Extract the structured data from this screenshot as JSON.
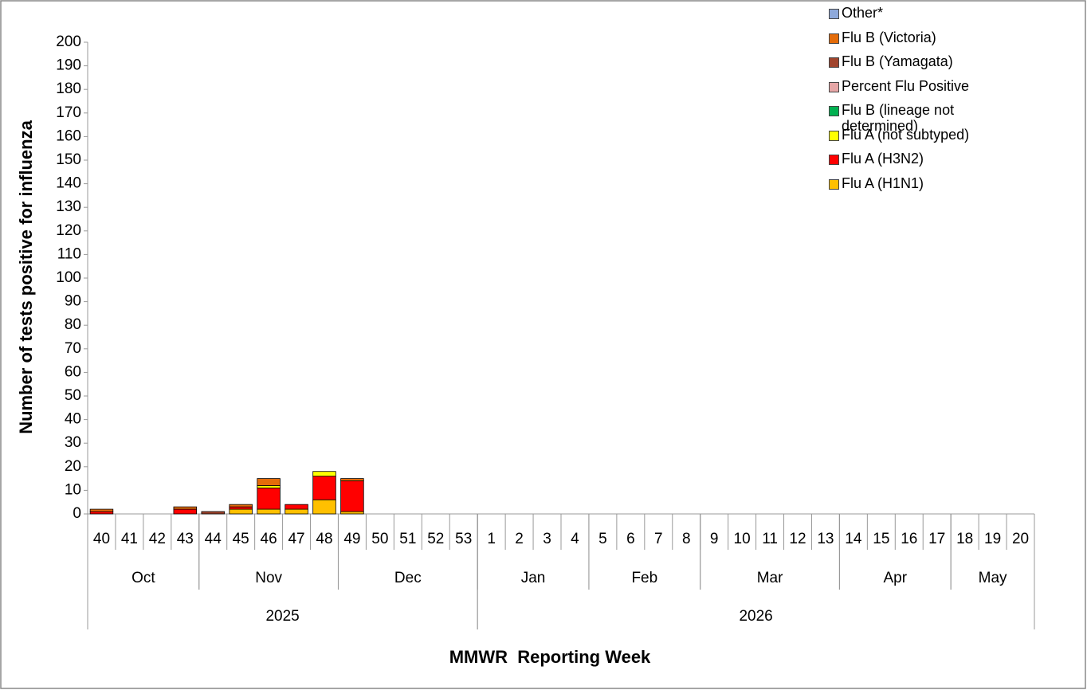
{
  "chart_data": {
    "type": "stacked_bar",
    "y_label": "Number of tests positive for influenza",
    "x_label": "MMWR  Reporting Week",
    "categories": [
      "40",
      "41",
      "42",
      "43",
      "44",
      "45",
      "46",
      "47",
      "48",
      "49",
      "50",
      "51",
      "52",
      "53",
      "1",
      "2",
      "3",
      "4",
      "5",
      "6",
      "7",
      "8",
      "9",
      "10",
      "11",
      "12",
      "13",
      "14",
      "15",
      "16",
      "17",
      "18",
      "19",
      "20"
    ],
    "month_groups": [
      {
        "label": "Oct",
        "span": 4
      },
      {
        "label": "Nov",
        "span": 5
      },
      {
        "label": "Dec",
        "span": 5
      },
      {
        "label": "Jan",
        "span": 4
      },
      {
        "label": "Feb",
        "span": 4
      },
      {
        "label": "Mar",
        "span": 5
      },
      {
        "label": "Apr",
        "span": 4
      },
      {
        "label": "May",
        "span": 3
      }
    ],
    "year_groups": [
      {
        "label": "2025",
        "span": 14
      },
      {
        "label": "2026",
        "span": 20
      }
    ],
    "series": [
      {
        "name": "Flu A (H1N1)",
        "color": "#FFC000",
        "values": [
          0,
          0,
          0,
          0,
          0,
          2,
          2,
          2,
          6,
          1,
          null,
          null,
          null,
          null,
          null,
          null,
          null,
          null,
          null,
          null,
          null,
          null,
          null,
          null,
          null,
          null,
          null,
          null,
          null,
          null,
          null,
          null,
          null,
          null
        ]
      },
      {
        "name": "Flu A (H3N2)",
        "color": "#FF0000",
        "values": [
          1,
          0,
          0,
          2,
          0,
          1,
          9,
          2,
          10,
          13,
          null,
          null,
          null,
          null,
          null,
          null,
          null,
          null,
          null,
          null,
          null,
          null,
          null,
          null,
          null,
          null,
          null,
          null,
          null,
          null,
          null,
          null,
          null,
          null
        ]
      },
      {
        "name": "Flu A (not subtyped)",
        "color": "#FFFF00",
        "values": [
          0,
          0,
          0,
          0,
          0,
          0,
          1,
          0,
          2,
          0,
          null,
          null,
          null,
          null,
          null,
          null,
          null,
          null,
          null,
          null,
          null,
          null,
          null,
          null,
          null,
          null,
          null,
          null,
          null,
          null,
          null,
          null,
          null,
          null
        ]
      },
      {
        "name": "Flu B (lineage not determined)",
        "color": "#00B050",
        "values": [
          0,
          0,
          0,
          0,
          0,
          0,
          0,
          0,
          0,
          0,
          null,
          null,
          null,
          null,
          null,
          null,
          null,
          null,
          null,
          null,
          null,
          null,
          null,
          null,
          null,
          null,
          null,
          null,
          null,
          null,
          null,
          null,
          null,
          null
        ]
      },
      {
        "name": "Percent Flu Positive",
        "color": "#E6A6A6",
        "values": [
          0,
          0,
          0,
          0,
          0,
          0,
          0,
          0,
          0,
          0,
          null,
          null,
          null,
          null,
          null,
          null,
          null,
          null,
          null,
          null,
          null,
          null,
          null,
          null,
          null,
          null,
          null,
          null,
          null,
          null,
          null,
          null,
          null,
          null
        ]
      },
      {
        "name": "Flu B (Yamagata)",
        "color": "#A0442C",
        "values": [
          0,
          0,
          0,
          0,
          1,
          0,
          0,
          0,
          0,
          0,
          null,
          null,
          null,
          null,
          null,
          null,
          null,
          null,
          null,
          null,
          null,
          null,
          null,
          null,
          null,
          null,
          null,
          null,
          null,
          null,
          null,
          null,
          null,
          null
        ]
      },
      {
        "name": "Flu B (Victoria)",
        "color": "#E46C0A",
        "values": [
          1,
          0,
          0,
          1,
          0,
          1,
          3,
          0,
          0,
          1,
          null,
          null,
          null,
          null,
          null,
          null,
          null,
          null,
          null,
          null,
          null,
          null,
          null,
          null,
          null,
          null,
          null,
          null,
          null,
          null,
          null,
          null,
          null,
          null
        ]
      },
      {
        "name": "Other*",
        "color": "#8EA9DB",
        "values": [
          0,
          0,
          0,
          0,
          0,
          0,
          0,
          0,
          0,
          0,
          null,
          null,
          null,
          null,
          null,
          null,
          null,
          null,
          null,
          null,
          null,
          null,
          null,
          null,
          null,
          null,
          null,
          null,
          null,
          null,
          null,
          null,
          null,
          null
        ]
      }
    ],
    "ylim": [
      0,
      200
    ],
    "yticks": [
      0,
      10,
      20,
      30,
      40,
      50,
      60,
      70,
      80,
      90,
      100,
      110,
      120,
      130,
      140,
      150,
      160,
      170,
      180,
      190,
      200
    ]
  }
}
